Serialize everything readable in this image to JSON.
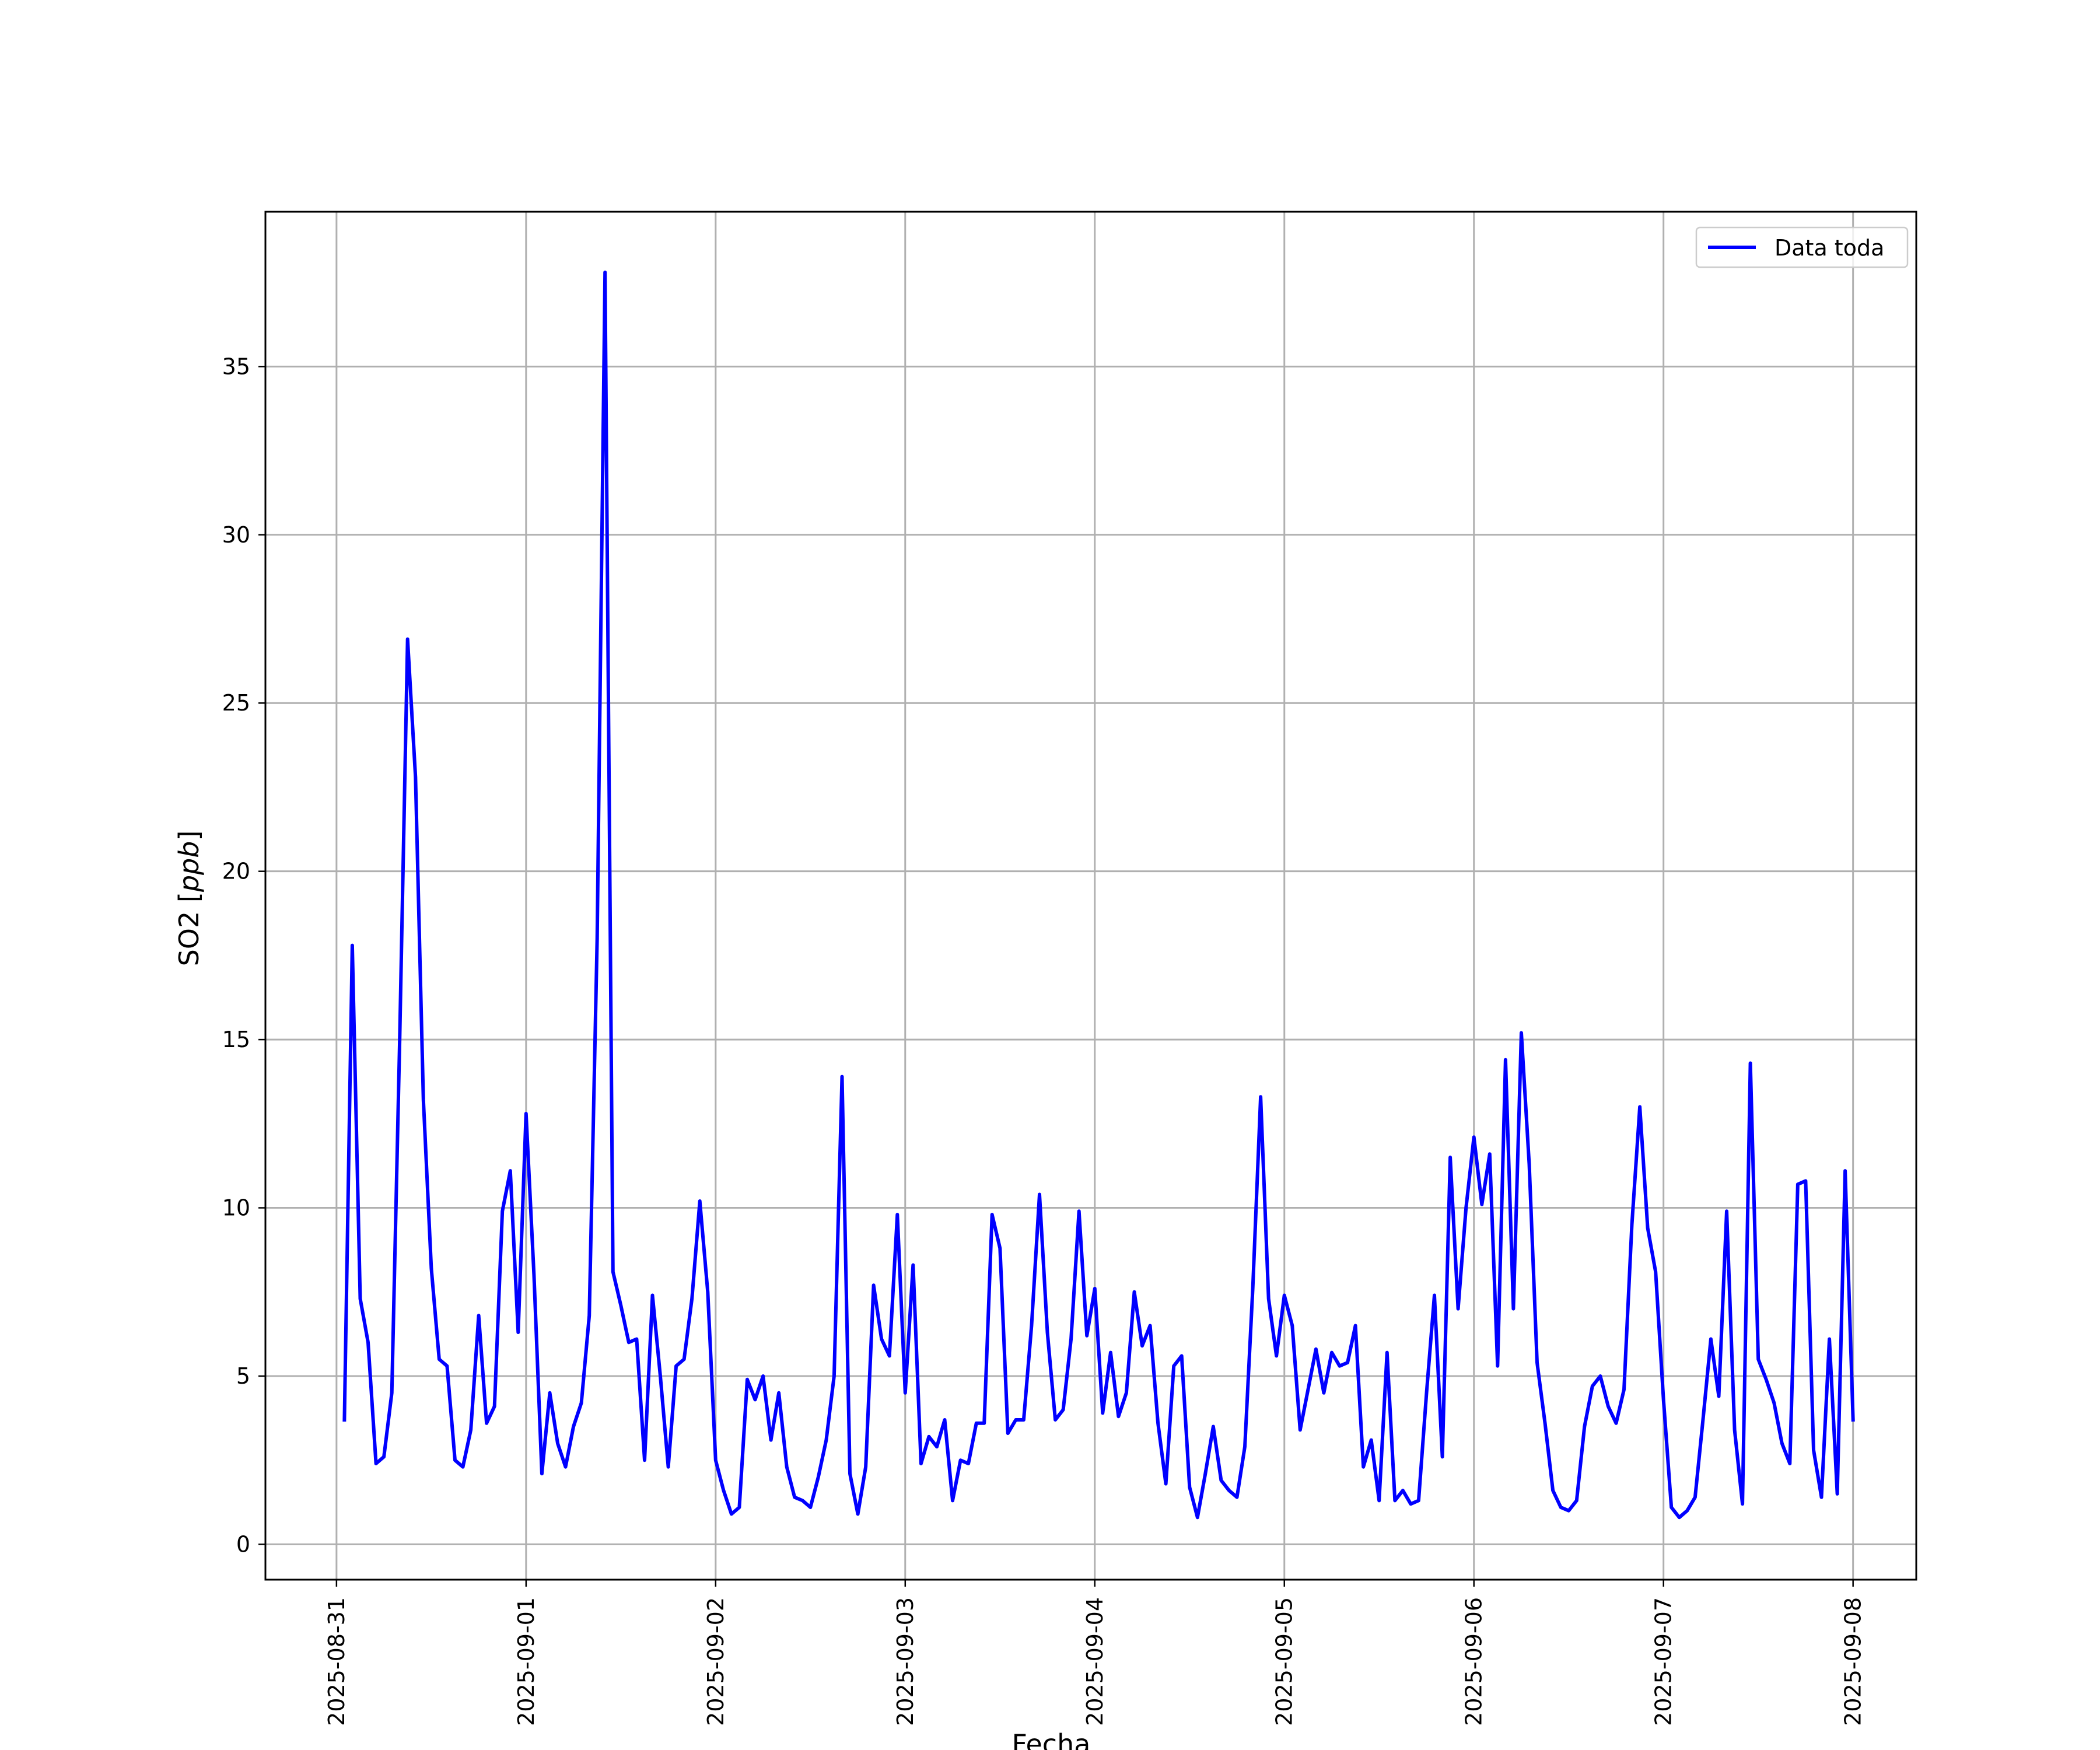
{
  "chart_data": {
    "type": "line",
    "xlabel": "Fecha",
    "ylabel": "SO2 [ppb]",
    "ylabel_base": "SO2 [",
    "ylabel_unit": "ppb",
    "ylabel_close": "]",
    "ylim": [
      -1.05,
      39.6
    ],
    "xlim": [
      "2025-08-30T15:00",
      "2025-09-08T08:00"
    ],
    "grid": true,
    "legend_position": "top-right",
    "line_color": "#0000ff",
    "x_ticks": [
      "2025-08-31",
      "2025-09-01",
      "2025-09-02",
      "2025-09-03",
      "2025-09-04",
      "2025-09-05",
      "2025-09-06",
      "2025-09-07",
      "2025-09-08"
    ],
    "y_ticks": [
      "0",
      "5",
      "10",
      "15",
      "20",
      "25",
      "30",
      "35"
    ],
    "series": [
      {
        "name": "Data toda",
        "x": [
          "2025-08-31T01:00",
          "2025-08-31T02:00",
          "2025-08-31T03:00",
          "2025-08-31T04:00",
          "2025-08-31T05:00",
          "2025-08-31T06:00",
          "2025-08-31T07:00",
          "2025-08-31T08:00",
          "2025-08-31T09:00",
          "2025-08-31T10:00",
          "2025-08-31T11:00",
          "2025-08-31T12:00",
          "2025-08-31T13:00",
          "2025-08-31T14:00",
          "2025-08-31T15:00",
          "2025-08-31T16:00",
          "2025-08-31T17:00",
          "2025-08-31T18:00",
          "2025-08-31T19:00",
          "2025-08-31T20:00",
          "2025-08-31T21:00",
          "2025-08-31T22:00",
          "2025-08-31T23:00",
          "2025-09-01T00:00",
          "2025-09-01T01:00",
          "2025-09-01T02:00",
          "2025-09-01T03:00",
          "2025-09-01T04:00",
          "2025-09-01T05:00",
          "2025-09-01T06:00",
          "2025-09-01T07:00",
          "2025-09-01T08:00",
          "2025-09-01T09:00",
          "2025-09-01T10:00",
          "2025-09-01T11:00",
          "2025-09-01T12:00",
          "2025-09-01T13:00",
          "2025-09-01T14:00",
          "2025-09-01T15:00",
          "2025-09-01T16:00",
          "2025-09-01T17:00",
          "2025-09-01T18:00",
          "2025-09-01T19:00",
          "2025-09-01T20:00",
          "2025-09-01T21:00",
          "2025-09-01T22:00",
          "2025-09-01T23:00",
          "2025-09-02T00:00",
          "2025-09-02T01:00",
          "2025-09-02T02:00",
          "2025-09-02T03:00",
          "2025-09-02T04:00",
          "2025-09-02T05:00",
          "2025-09-02T06:00",
          "2025-09-02T07:00",
          "2025-09-02T08:00",
          "2025-09-02T09:00",
          "2025-09-02T10:00",
          "2025-09-02T11:00",
          "2025-09-02T12:00",
          "2025-09-02T13:00",
          "2025-09-02T14:00",
          "2025-09-02T15:00",
          "2025-09-02T16:00",
          "2025-09-02T17:00",
          "2025-09-02T18:00",
          "2025-09-02T19:00",
          "2025-09-02T20:00",
          "2025-09-02T21:00",
          "2025-09-02T22:00",
          "2025-09-02T23:00",
          "2025-09-03T00:00",
          "2025-09-03T01:00",
          "2025-09-03T02:00",
          "2025-09-03T03:00",
          "2025-09-03T04:00",
          "2025-09-03T05:00",
          "2025-09-03T06:00",
          "2025-09-03T07:00",
          "2025-09-03T08:00",
          "2025-09-03T09:00",
          "2025-09-03T10:00",
          "2025-09-03T11:00",
          "2025-09-03T12:00",
          "2025-09-03T13:00",
          "2025-09-03T14:00",
          "2025-09-03T15:00",
          "2025-09-03T16:00",
          "2025-09-03T17:00",
          "2025-09-03T18:00",
          "2025-09-03T19:00",
          "2025-09-03T20:00",
          "2025-09-03T21:00",
          "2025-09-03T22:00",
          "2025-09-03T23:00",
          "2025-09-04T00:00",
          "2025-09-04T01:00",
          "2025-09-04T02:00",
          "2025-09-04T03:00",
          "2025-09-04T04:00",
          "2025-09-04T05:00",
          "2025-09-04T06:00",
          "2025-09-04T07:00",
          "2025-09-04T08:00",
          "2025-09-04T09:00",
          "2025-09-04T10:00",
          "2025-09-04T11:00",
          "2025-09-04T12:00",
          "2025-09-04T13:00",
          "2025-09-04T14:00",
          "2025-09-04T15:00",
          "2025-09-04T16:00",
          "2025-09-04T17:00",
          "2025-09-04T18:00",
          "2025-09-04T19:00",
          "2025-09-04T20:00",
          "2025-09-04T21:00",
          "2025-09-04T22:00",
          "2025-09-04T23:00",
          "2025-09-05T00:00",
          "2025-09-05T01:00",
          "2025-09-05T02:00",
          "2025-09-05T03:00",
          "2025-09-05T04:00",
          "2025-09-05T05:00",
          "2025-09-05T06:00",
          "2025-09-05T07:00",
          "2025-09-05T08:00",
          "2025-09-05T09:00",
          "2025-09-05T10:00",
          "2025-09-05T11:00",
          "2025-09-05T12:00",
          "2025-09-05T13:00",
          "2025-09-05T14:00",
          "2025-09-05T15:00",
          "2025-09-05T16:00",
          "2025-09-05T17:00",
          "2025-09-05T18:00",
          "2025-09-05T19:00",
          "2025-09-05T20:00",
          "2025-09-05T21:00",
          "2025-09-05T22:00",
          "2025-09-05T23:00",
          "2025-09-06T00:00",
          "2025-09-06T01:00",
          "2025-09-06T02:00",
          "2025-09-06T03:00",
          "2025-09-06T04:00",
          "2025-09-06T05:00",
          "2025-09-06T06:00",
          "2025-09-06T07:00",
          "2025-09-06T08:00",
          "2025-09-06T09:00",
          "2025-09-06T10:00",
          "2025-09-06T11:00",
          "2025-09-06T12:00",
          "2025-09-06T13:00",
          "2025-09-06T14:00",
          "2025-09-06T15:00",
          "2025-09-06T16:00",
          "2025-09-06T17:00",
          "2025-09-06T18:00",
          "2025-09-06T19:00",
          "2025-09-06T20:00",
          "2025-09-06T21:00",
          "2025-09-06T22:00",
          "2025-09-06T23:00",
          "2025-09-07T00:00",
          "2025-09-07T01:00",
          "2025-09-07T02:00",
          "2025-09-07T03:00",
          "2025-09-07T04:00",
          "2025-09-07T05:00",
          "2025-09-07T06:00",
          "2025-09-07T07:00",
          "2025-09-07T08:00",
          "2025-09-07T09:00",
          "2025-09-07T10:00",
          "2025-09-07T11:00",
          "2025-09-07T12:00",
          "2025-09-07T13:00",
          "2025-09-07T14:00",
          "2025-09-07T15:00",
          "2025-09-07T16:00",
          "2025-09-07T17:00",
          "2025-09-07T18:00",
          "2025-09-07T19:00",
          "2025-09-07T20:00",
          "2025-09-07T21:00",
          "2025-09-07T22:00",
          "2025-09-07T23:00",
          "2025-09-08T00:00"
        ],
        "values": [
          3.7,
          17.8,
          7.3,
          6,
          2.4,
          2.6,
          4.5,
          15,
          26.9,
          22.8,
          13.2,
          8.2,
          5.5,
          5.3,
          2.5,
          2.3,
          3.4,
          6.8,
          3.6,
          4.1,
          9.9,
          11.1,
          6.3,
          12.8,
          8,
          2.1,
          4.5,
          3,
          2.3,
          3.5,
          4.2,
          6.8,
          18,
          37.8,
          8.1,
          7.1,
          6,
          6.1,
          2.5,
          7.4,
          5,
          2.3,
          5.3,
          5.5,
          7.3,
          10.2,
          7.5,
          2.5,
          1.6,
          0.9,
          1.1,
          4.9,
          4.3,
          5,
          3.1,
          4.5,
          2.3,
          1.4,
          1.3,
          1.1,
          2,
          3.1,
          5,
          13.9,
          2.1,
          0.9,
          2.3,
          7.7,
          6.1,
          5.6,
          9.8,
          4.5,
          8.3,
          2.4,
          3.2,
          2.9,
          3.7,
          1.3,
          2.5,
          2.4,
          3.6,
          3.6,
          9.8,
          8.8,
          3.3,
          3.7,
          3.7,
          6.5,
          10.4,
          6.3,
          3.7,
          4,
          6.1,
          9.9,
          6.2,
          7.6,
          3.9,
          5.7,
          3.8,
          4.5,
          7.5,
          5.9,
          6.5,
          3.6,
          1.8,
          5.3,
          5.6,
          1.7,
          0.8,
          2.1,
          3.5,
          1.9,
          1.6,
          1.4,
          2.9,
          7.6,
          13.3,
          7.3,
          5.6,
          7.4,
          6.5,
          3.4,
          4.6,
          5.8,
          4.5,
          5.7,
          5.3,
          5.4,
          6.5,
          2.3,
          3.1,
          1.3,
          5.7,
          1.3,
          1.6,
          1.2,
          1.3,
          4.5,
          7.4,
          2.6,
          11.5,
          7,
          10,
          12.1,
          10.1,
          11.6,
          5.3,
          14.4,
          7,
          15.2,
          11.3,
          5.4,
          3.6,
          1.6,
          1.1,
          1,
          1.3,
          3.5,
          4.7,
          5,
          4.1,
          3.6,
          4.6,
          9.5,
          13,
          9.4,
          8.1,
          4.3,
          1.1,
          0.8,
          1,
          1.4,
          3.7,
          6.1,
          4.4,
          9.9,
          3.4,
          1.2,
          14.3,
          5.5,
          4.9,
          4.2,
          3,
          2.4,
          10.7,
          10.8,
          2.8,
          1.4,
          6.1,
          1.5,
          11.1,
          3.7
        ]
      }
    ]
  }
}
